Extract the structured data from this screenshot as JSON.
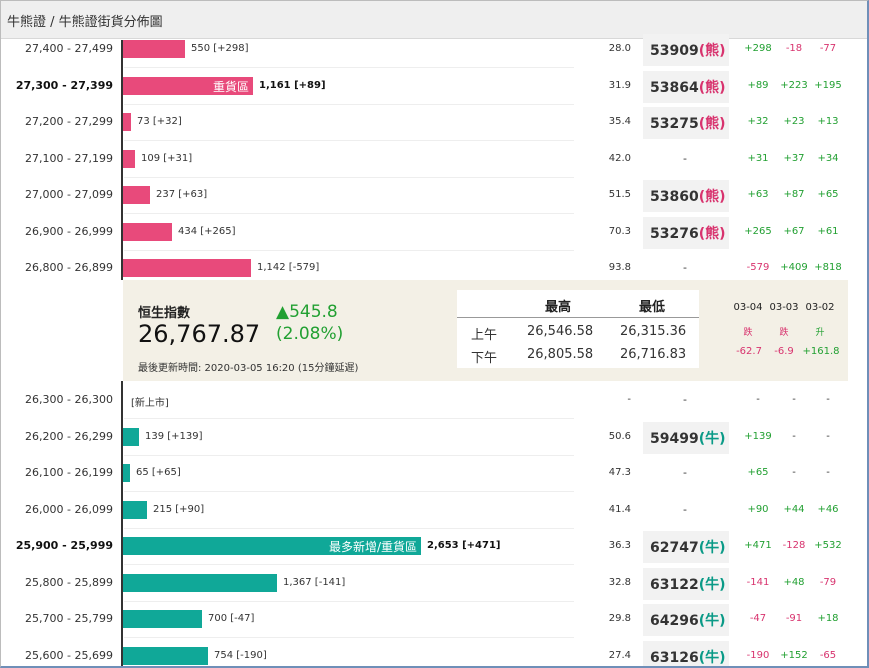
{
  "page": {
    "title": "牛熊證 / 牛熊證街貨分佈圖"
  },
  "colors": {
    "bear": "#e84a7b",
    "bull": "#10a898",
    "up": "#22a032",
    "down": "#d8336e"
  },
  "bear_rows": [
    {
      "range": "27,400 - 27,499",
      "bar_value": 550,
      "label": "550 [+298]",
      "pct": "28.0",
      "code": "53909",
      "kind": "(熊)",
      "c1": "+298",
      "c2": "-18",
      "c3": "-77"
    },
    {
      "range": "27,300 - 27,399",
      "bar_value": 1161,
      "inbar": "重貨區",
      "label": "1,161 [+89]",
      "pct": "31.9",
      "code": "53864",
      "kind": "(熊)",
      "c1": "+89",
      "c2": "+223",
      "c3": "+195"
    },
    {
      "range": "27,200 - 27,299",
      "bar_value": 73,
      "label": "73 [+32]",
      "pct": "35.4",
      "code": "53275",
      "kind": "(熊)",
      "c1": "+32",
      "c2": "+23",
      "c3": "+13"
    },
    {
      "range": "27,100 - 27,199",
      "bar_value": 109,
      "label": "109 [+31]",
      "pct": "42.0",
      "code": "",
      "kind": "",
      "c1": "+31",
      "c2": "+37",
      "c3": "+34"
    },
    {
      "range": "27,000 - 27,099",
      "bar_value": 237,
      "label": "237 [+63]",
      "pct": "51.5",
      "code": "53860",
      "kind": "(熊)",
      "c1": "+63",
      "c2": "+87",
      "c3": "+65"
    },
    {
      "range": "26,900 - 26,999",
      "bar_value": 434,
      "label": "434 [+265]",
      "pct": "70.3",
      "code": "53276",
      "kind": "(熊)",
      "c1": "+265",
      "c2": "+67",
      "c3": "+61"
    },
    {
      "range": "26,800 - 26,899",
      "bar_value": 1142,
      "label": "1,142 [-579]",
      "pct": "93.8",
      "code": "",
      "kind": "",
      "c1": "-579",
      "c2": "+409",
      "c3": "+818"
    }
  ],
  "index": {
    "name": "恒生指數",
    "value": "26,767.87",
    "change": "▲545.8",
    "change_pct": "(2.08%)",
    "updated": "最後更新時間: 2020-03-05 16:20 (15分鐘延遲)",
    "high_label": "最高",
    "low_label": "最低",
    "am_label": "上午",
    "pm_label": "下午",
    "am_high": "26,546.58",
    "am_low": "26,315.36",
    "pm_high": "26,805.58",
    "pm_low": "26,716.83",
    "dates": [
      "03-04",
      "03-03",
      "03-02"
    ],
    "directions": [
      "跌",
      "跌",
      "升"
    ],
    "date_changes": [
      "-62.7",
      "-6.9",
      "+161.8"
    ]
  },
  "bull_rows": [
    {
      "range": "26,300 - 26,300",
      "bar_value": 0,
      "label": "[新上市]",
      "pct": "-",
      "code": "",
      "kind": "",
      "c1": "-",
      "c2": "-",
      "c3": "-"
    },
    {
      "range": "26,200 - 26,299",
      "bar_value": 139,
      "label": "139 [+139]",
      "pct": "50.6",
      "code": "59499",
      "kind": "(牛)",
      "c1": "+139",
      "c2": "-",
      "c3": "-"
    },
    {
      "range": "26,100 - 26,199",
      "bar_value": 65,
      "label": "65 [+65]",
      "pct": "47.3",
      "code": "",
      "kind": "",
      "c1": "+65",
      "c2": "-",
      "c3": "-"
    },
    {
      "range": "26,000 - 26,099",
      "bar_value": 215,
      "label": "215 [+90]",
      "pct": "41.4",
      "code": "",
      "kind": "",
      "c1": "+90",
      "c2": "+44",
      "c3": "+46"
    },
    {
      "range": "25,900 - 25,999",
      "bar_value": 2653,
      "inbar": "最多新增/重貨區",
      "label": "2,653 [+471]",
      "pct": "36.3",
      "code": "62747",
      "kind": "(牛)",
      "c1": "+471",
      "c2": "-128",
      "c3": "+532"
    },
    {
      "range": "25,800 - 25,899",
      "bar_value": 1367,
      "label": "1,367 [-141]",
      "pct": "32.8",
      "code": "63122",
      "kind": "(牛)",
      "c1": "-141",
      "c2": "+48",
      "c3": "-79"
    },
    {
      "range": "25,700 - 25,799",
      "bar_value": 700,
      "label": "700 [-47]",
      "pct": "29.8",
      "code": "64296",
      "kind": "(牛)",
      "c1": "-47",
      "c2": "-91",
      "c3": "+18"
    },
    {
      "range": "25,600 - 25,699",
      "bar_value": 754,
      "label": "754 [-190]",
      "pct": "27.4",
      "code": "63126",
      "kind": "(牛)",
      "c1": "-190",
      "c2": "+152",
      "c3": "-65"
    }
  ]
}
